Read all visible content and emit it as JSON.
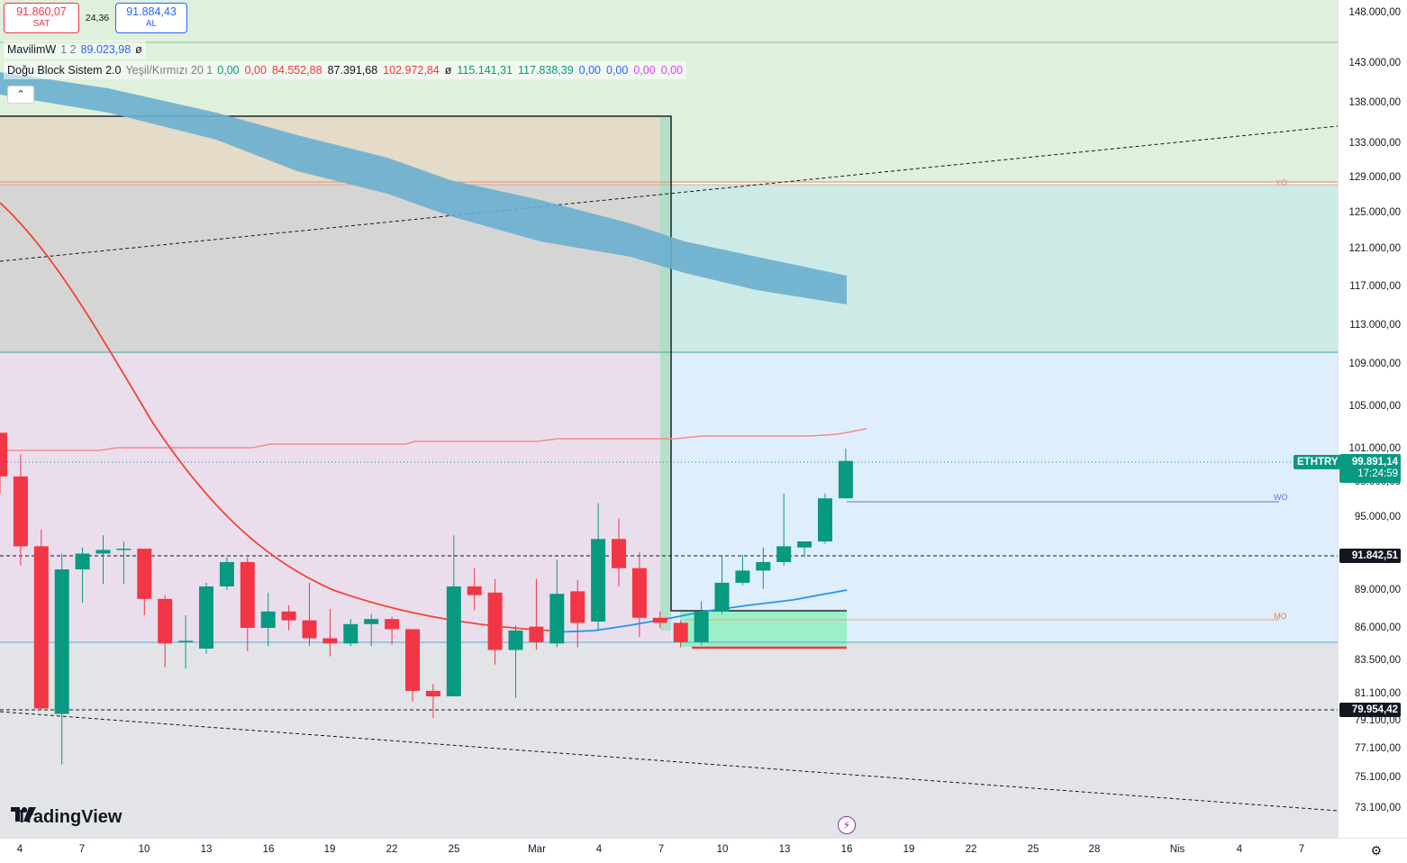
{
  "trade": {
    "sell_price": "91.860,07",
    "sell_label": "SAT",
    "spread": "24,36",
    "buy_price": "91.884,43",
    "buy_label": "AL"
  },
  "legend": {
    "ind1": {
      "name": "MavilimW",
      "params": "1 2",
      "value": "89.023,98",
      "symbol": "ø",
      "value_color": "#2962ff"
    },
    "ind2": {
      "name": "Doğu Block Sistem 2.0",
      "params": "Yeşil/Kırmızı 20 1",
      "values": [
        {
          "text": "0,00",
          "color": "#089981"
        },
        {
          "text": "0,00",
          "color": "#f23645"
        },
        {
          "text": "84.552,88",
          "color": "#f23645"
        },
        {
          "text": "87.391,68",
          "color": "#131722"
        },
        {
          "text": "102.972,84",
          "color": "#f23645"
        },
        {
          "text": "ø",
          "color": "#131722"
        },
        {
          "text": "115.141,31",
          "color": "#089981"
        },
        {
          "text": "117.838,39",
          "color": "#089981"
        },
        {
          "text": "0,00",
          "color": "#2962ff"
        },
        {
          "text": "0,00",
          "color": "#2962ff"
        },
        {
          "text": "0,00",
          "color": "#e040fb"
        },
        {
          "text": "0,00",
          "color": "#e040fb"
        }
      ]
    },
    "collapse_icon": "chevron-up-icon"
  },
  "price_axis": {
    "ticks": [
      "148.000,00",
      "143.000,00",
      "138.000,00",
      "133.000,00",
      "129.000,00",
      "125.000,00",
      "121.000,00",
      "117.000,00",
      "113.000,00",
      "109.000,00",
      "105.000,00",
      "101.000,00",
      "98.000,00",
      "95.000,00",
      "89.000,00",
      "86.000,00",
      "83.500,00",
      "81.100,00",
      "79.100,00",
      "77.100,00",
      "75.100,00",
      "73.100,00"
    ],
    "symbol_label": "ETHTRY",
    "last_price": "99.891,14",
    "countdown": "17:24:59",
    "level1": "91.842,51",
    "level2": "79.954,42"
  },
  "time_axis": {
    "ticks": [
      "4",
      "7",
      "10",
      "13",
      "16",
      "19",
      "22",
      "25",
      "Mar",
      "4",
      "7",
      "10",
      "13",
      "16",
      "19",
      "22",
      "25",
      "28",
      "Nis",
      "4",
      "7"
    ],
    "settings_icon": "gear-icon"
  },
  "level_tags": {
    "yo": "YO",
    "wo": "WO",
    "mo": "MO"
  },
  "brand": {
    "name": "TradingView",
    "logo_icon": "tradingview-logo-icon"
  },
  "colors": {
    "up": "#089981",
    "down": "#f23645",
    "mavilim": "#2196f3",
    "ema": "#f44336",
    "band": "#6aafcf",
    "ethtry_badge": "#089981"
  },
  "chart_data": {
    "type": "candlestick",
    "symbol": "ETHTRY",
    "x_label_sequence": [
      "4",
      "7",
      "10",
      "13",
      "16",
      "19",
      "22",
      "25",
      "Mar",
      "4",
      "7",
      "10",
      "13",
      "16",
      "19",
      "22",
      "25",
      "28",
      "Nis",
      "4",
      "7"
    ],
    "ylim": [
      72000,
      151000
    ],
    "candles": [
      {
        "o": 102500,
        "h": 102500,
        "l": 97000,
        "c": 98500
      },
      {
        "o": 98500,
        "h": 100500,
        "l": 91000,
        "c": 92600
      },
      {
        "o": 92600,
        "h": 94000,
        "l": 79900,
        "c": 80000
      },
      {
        "o": 79600,
        "h": 92000,
        "l": 76000,
        "c": 90700
      },
      {
        "o": 90700,
        "h": 92500,
        "l": 88000,
        "c": 92000
      },
      {
        "o": 92000,
        "h": 93500,
        "l": 89500,
        "c": 92300
      },
      {
        "o": 92300,
        "h": 93000,
        "l": 89500,
        "c": 92400
      },
      {
        "o": 92400,
        "h": 92400,
        "l": 87000,
        "c": 88300
      },
      {
        "o": 88300,
        "h": 88600,
        "l": 83000,
        "c": 84800
      },
      {
        "o": 84900,
        "h": 87000,
        "l": 82900,
        "c": 85000
      },
      {
        "o": 84400,
        "h": 89600,
        "l": 84000,
        "c": 89300
      },
      {
        "o": 89300,
        "h": 91700,
        "l": 89000,
        "c": 91300
      },
      {
        "o": 91300,
        "h": 91700,
        "l": 84200,
        "c": 86000
      },
      {
        "o": 86000,
        "h": 88800,
        "l": 84600,
        "c": 87300
      },
      {
        "o": 87300,
        "h": 87800,
        "l": 85800,
        "c": 86600
      },
      {
        "o": 86600,
        "h": 89600,
        "l": 84600,
        "c": 85200
      },
      {
        "o": 85200,
        "h": 87500,
        "l": 83800,
        "c": 84800
      },
      {
        "o": 84800,
        "h": 86700,
        "l": 84600,
        "c": 86300
      },
      {
        "o": 86300,
        "h": 87100,
        "l": 84600,
        "c": 86700
      },
      {
        "o": 86700,
        "h": 86900,
        "l": 84700,
        "c": 85900
      },
      {
        "o": 85900,
        "h": 85900,
        "l": 80500,
        "c": 81300
      },
      {
        "o": 81300,
        "h": 81800,
        "l": 79300,
        "c": 80900
      },
      {
        "o": 80900,
        "h": 93500,
        "l": 80900,
        "c": 89300
      },
      {
        "o": 89300,
        "h": 90800,
        "l": 87400,
        "c": 88600
      },
      {
        "o": 88800,
        "h": 89900,
        "l": 83200,
        "c": 84300
      },
      {
        "o": 84300,
        "h": 86200,
        "l": 80800,
        "c": 85800
      },
      {
        "o": 86100,
        "h": 89900,
        "l": 84300,
        "c": 84900
      },
      {
        "o": 84800,
        "h": 91500,
        "l": 84500,
        "c": 88700
      },
      {
        "o": 88900,
        "h": 89800,
        "l": 84500,
        "c": 86400
      },
      {
        "o": 86500,
        "h": 96200,
        "l": 85800,
        "c": 93200
      },
      {
        "o": 93200,
        "h": 94900,
        "l": 89300,
        "c": 90800
      },
      {
        "o": 90800,
        "h": 92100,
        "l": 85300,
        "c": 86800
      },
      {
        "o": 86800,
        "h": 87300,
        "l": 86000,
        "c": 86400
      },
      {
        "o": 86400,
        "h": 86600,
        "l": 84500,
        "c": 84900
      },
      {
        "o": 84900,
        "h": 88100,
        "l": 84700,
        "c": 87300
      },
      {
        "o": 87300,
        "h": 91800,
        "l": 87100,
        "c": 89600
      },
      {
        "o": 89600,
        "h": 91900,
        "l": 89400,
        "c": 90600
      },
      {
        "o": 90600,
        "h": 92500,
        "l": 89100,
        "c": 91300
      },
      {
        "o": 91300,
        "h": 97000,
        "l": 91000,
        "c": 92600
      },
      {
        "o": 92500,
        "h": 93000,
        "l": 91700,
        "c": 93000
      },
      {
        "o": 93000,
        "h": 97000,
        "l": 92800,
        "c": 96600
      },
      {
        "o": 96600,
        "h": 101000,
        "l": 96600,
        "c": 99891
      }
    ]
  }
}
